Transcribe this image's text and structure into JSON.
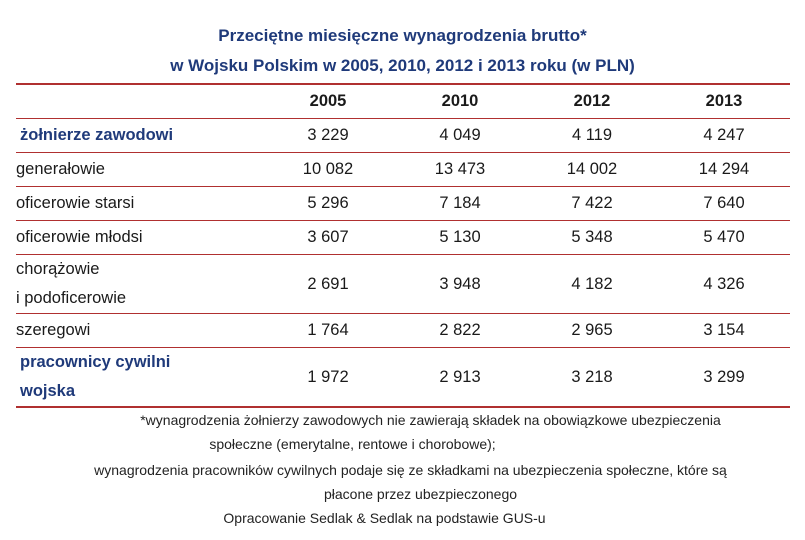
{
  "title": {
    "line1": "Przeciętne miesięczne wynagrodzenia brutto*",
    "line2": "w Wojsku Polskim w 2005, 2010, 2012 i 2013 roku (w PLN)"
  },
  "chart_data": {
    "type": "table",
    "columns": [
      "2005",
      "2010",
      "2012",
      "2013"
    ],
    "rows": [
      {
        "label": "żołnierze zawodowi",
        "main": true,
        "values": [
          "3 229",
          "4 049",
          "4 119",
          "4 247"
        ]
      },
      {
        "label": "generałowie",
        "main": false,
        "values": [
          "10 082",
          "13 473",
          "14 002",
          "14 294"
        ]
      },
      {
        "label": "oficerowie starsi",
        "main": false,
        "values": [
          "5 296",
          "7 184",
          "7 422",
          "7 640"
        ]
      },
      {
        "label": "oficerowie młodsi",
        "main": false,
        "values": [
          "3 607",
          "5 130",
          "5 348",
          "5 470"
        ]
      },
      {
        "label_lines": [
          "chorążowie",
          "i podoficerowie"
        ],
        "main": false,
        "values": [
          "2 691",
          "3 948",
          "4 182",
          "4 326"
        ]
      },
      {
        "label": "szeregowi",
        "main": false,
        "values": [
          "1 764",
          "2 822",
          "2 965",
          "3 154"
        ]
      },
      {
        "label_lines": [
          "pracownicy cywilni",
          "wojska"
        ],
        "main": true,
        "values": [
          "1 972",
          "2 913",
          "3 218",
          "3 299"
        ]
      }
    ]
  },
  "footnote": {
    "line1": "*wynagrodzenia żołnierzy zawodowych nie zawierają składek na obowiązkowe ubezpieczenia",
    "line2": "społeczne (emerytalne, rentowe i chorobowe);",
    "line3": "wynagrodzenia pracowników cywilnych podaje się ze składkami na ubezpieczenia społeczne, które są",
    "line4": "płacone przez ubezpieczonego",
    "line5": "Opracowanie Sedlak & Sedlak na podstawie GUS-u"
  }
}
